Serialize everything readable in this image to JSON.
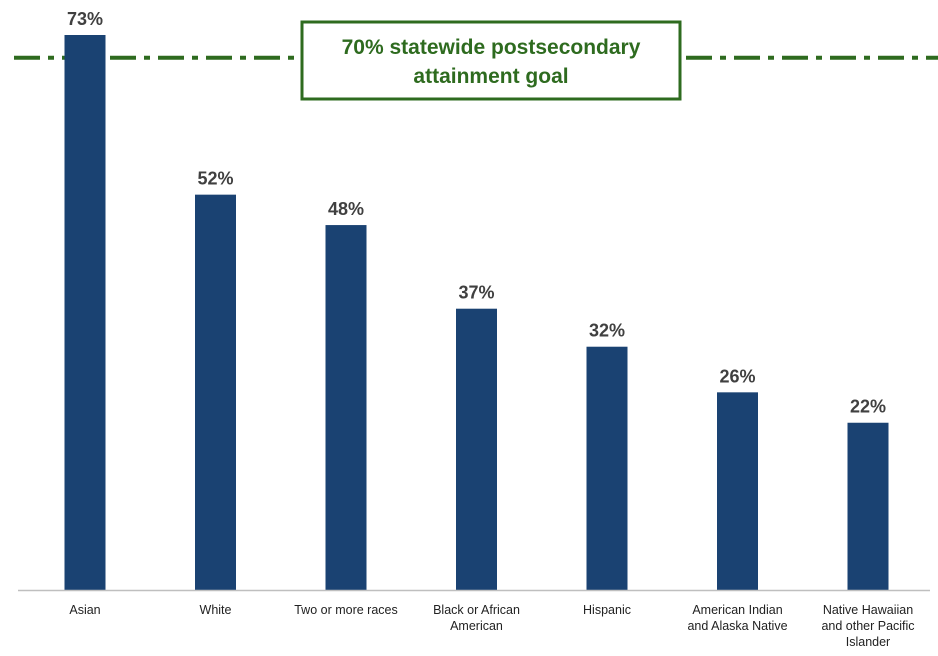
{
  "chart_data": {
    "type": "bar",
    "categories": [
      [
        "Asian"
      ],
      [
        "White"
      ],
      [
        "Two or more races"
      ],
      [
        "Black or African",
        "American"
      ],
      [
        "Hispanic"
      ],
      [
        "American Indian",
        "and Alaska Native"
      ],
      [
        "Native Hawaiian",
        "and other Pacific",
        "Islander"
      ]
    ],
    "values": [
      73,
      52,
      48,
      37,
      32,
      26,
      22
    ],
    "value_labels": [
      "73%",
      "52%",
      "48%",
      "37%",
      "32%",
      "26%",
      "22%"
    ],
    "ylim": [
      0,
      73
    ],
    "grid": false,
    "reference_line": {
      "value": 70,
      "label_lines": [
        "70% statewide postsecondary",
        "attainment goal"
      ],
      "style": "dash-dot",
      "color": "#2e6b1f"
    },
    "bar_color": "#1a4272",
    "axis_color": "#bfbfbf"
  }
}
